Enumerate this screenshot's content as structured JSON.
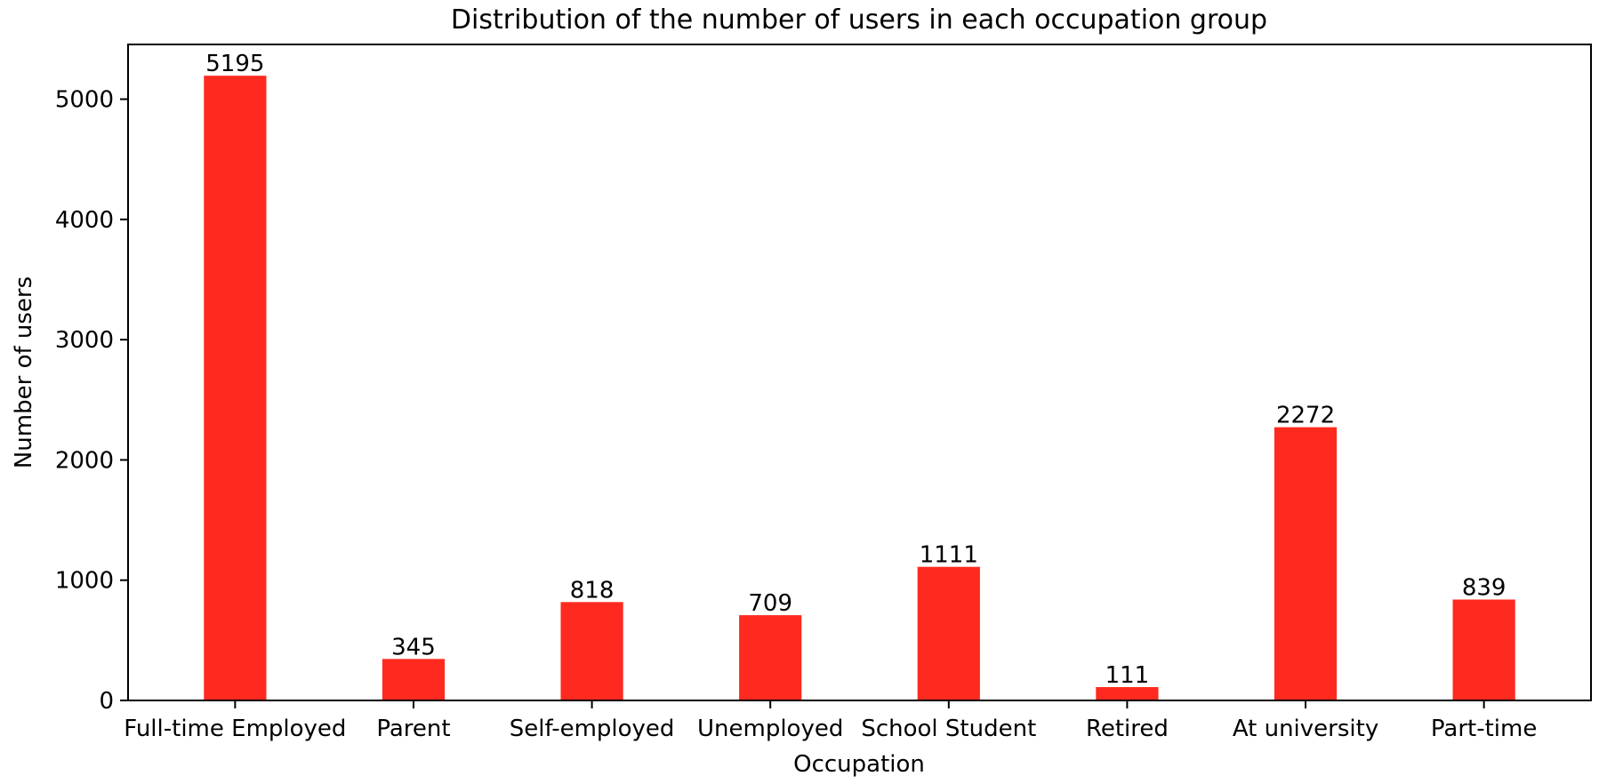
{
  "chart_data": {
    "type": "bar",
    "title": "Distribution of the number of users in each occupation group",
    "xlabel": "Occupation",
    "ylabel": "Number of users",
    "categories": [
      "Full-time Employed",
      "Parent",
      "Self-employed",
      "Unemployed",
      "School Student",
      "Retired",
      "At university",
      "Part-time"
    ],
    "values": [
      5195,
      345,
      818,
      709,
      1111,
      111,
      2272,
      839
    ],
    "data_labels": [
      "5195",
      "345",
      "818",
      "709",
      "1111",
      "111",
      "2272",
      "839"
    ],
    "yticks": [
      0,
      1000,
      2000,
      3000,
      4000,
      5000
    ],
    "ytick_labels": [
      "0",
      "1000",
      "2000",
      "3000",
      "4000",
      "5000"
    ],
    "ylim": [
      0,
      5455
    ],
    "grid": false,
    "legend": "none",
    "bar_color": "#ff2a1f"
  }
}
